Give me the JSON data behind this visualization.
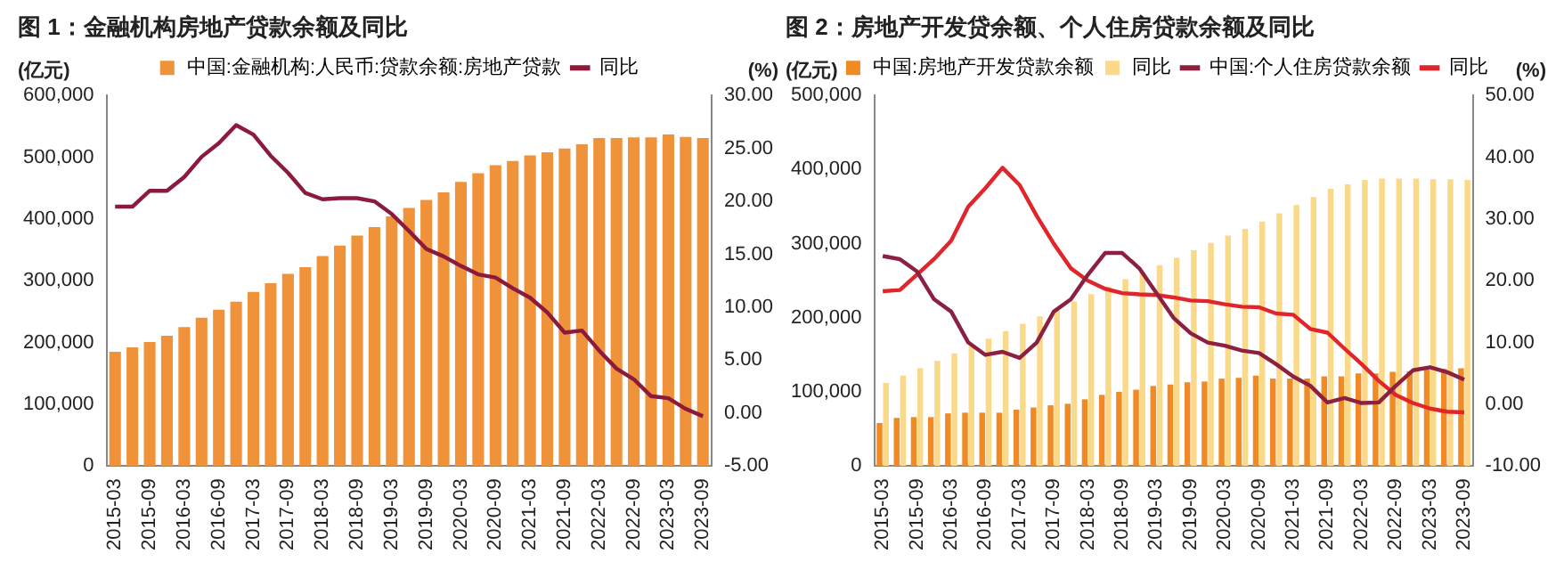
{
  "chart_data": [
    {
      "type": "bar",
      "title": "图 1：金融机构房地产贷款余额及同比",
      "ylabel": "(亿元)",
      "y2label": "(%)",
      "categories": [
        "2015-03",
        null,
        "2015-09",
        null,
        "2016-03",
        null,
        "2016-09",
        null,
        "2017-03",
        null,
        "2017-09",
        null,
        "2018-03",
        null,
        "2018-09",
        null,
        "2019-03",
        null,
        "2019-09",
        null,
        "2020-03",
        null,
        "2020-09",
        null,
        "2021-03",
        null,
        "2021-09",
        null,
        "2022-03",
        null,
        "2022-09",
        null,
        "2023-03",
        null,
        "2023-09"
      ],
      "series": [
        {
          "name": "中国:金融机构:人民币:贷款余额:房地产贷款",
          "color": "#f0923a",
          "values": [
            185000,
            192000,
            201000,
            211000,
            225000,
            240000,
            253000,
            266000,
            282000,
            296000,
            311000,
            322000,
            340000,
            357000,
            373000,
            387000,
            404000,
            418000,
            431000,
            443000,
            460000,
            474000,
            487000,
            494000,
            503000,
            508000,
            514000,
            521000,
            531000,
            531000,
            532000,
            532000,
            537000,
            533000,
            531000
          ]
        },
        {
          "name": "同比",
          "type": "line",
          "axis": "y2",
          "color": "#8b1a3c",
          "values": [
            19.5,
            19.5,
            21,
            21,
            22.3,
            24.2,
            25.5,
            27.2,
            26.3,
            24.3,
            22.7,
            20.8,
            20.2,
            20.3,
            20.3,
            20,
            18.8,
            17.2,
            15.5,
            14.8,
            13.9,
            13.1,
            12.8,
            11.8,
            10.9,
            9.5,
            7.6,
            7.8,
            5.9,
            4.2,
            3.2,
            1.6,
            1.4,
            0.4,
            -0.3
          ]
        }
      ],
      "ylim": [
        0,
        600000
      ],
      "yticks": [
        0,
        {
          "value": 100000,
          "label": "100,000"
        },
        {
          "value": 200000,
          "label": "200,000"
        },
        {
          "value": 300000,
          "label": "300,000"
        },
        {
          "value": 400000,
          "label": "400,000"
        },
        {
          "value": 500000,
          "label": "500,000"
        },
        {
          "value": 600000,
          "label": "600,000"
        }
      ],
      "y2lim": [
        -5,
        30
      ],
      "y2ticks": [
        {
          "value": -5,
          "label": "-5.00"
        },
        {
          "value": 0,
          "label": "0.00"
        },
        {
          "value": 5,
          "label": "5.00"
        },
        {
          "value": 10,
          "label": "10.00"
        },
        {
          "value": 15,
          "label": "15.00"
        },
        {
          "value": 20,
          "label": "20.00"
        },
        {
          "value": 25,
          "label": "25.00"
        },
        {
          "value": 30,
          "label": "30.00"
        }
      ],
      "legend": "top",
      "marker": "none"
    },
    {
      "type": "bar",
      "title": "图 2：房地产开发贷余额、个人住房贷款余额及同比",
      "ylabel": "(亿元)",
      "y2label": "(%)",
      "categories": [
        "2015-03",
        null,
        "2015-09",
        null,
        "2016-03",
        null,
        "2016-09",
        null,
        "2017-03",
        null,
        "2017-09",
        null,
        "2018-03",
        null,
        "2018-09",
        null,
        "2019-03",
        null,
        "2019-09",
        null,
        "2020-03",
        null,
        "2020-09",
        null,
        "2021-03",
        null,
        "2021-09",
        null,
        "2022-03",
        null,
        "2022-09",
        null,
        "2023-03",
        null,
        "2023-09"
      ],
      "series": [
        {
          "name": "中国:房地产开发贷款余额",
          "color": "#f08a24",
          "values": [
            58000,
            65000,
            66000,
            66000,
            71000,
            72000,
            72000,
            72000,
            76000,
            79000,
            82000,
            84000,
            90000,
            96000,
            100000,
            103000,
            108000,
            110000,
            113000,
            114000,
            118000,
            119000,
            122000,
            118000,
            118000,
            118000,
            121000,
            121000,
            125000,
            125000,
            127000,
            128000,
            130000,
            131000,
            132000
          ]
        },
        {
          "name": "同比",
          "color": "#fbd98a",
          "values": [
            112000,
            122000,
            132000,
            142000,
            152000,
            162000,
            172000,
            182000,
            192000,
            202000,
            212000,
            222000,
            232000,
            242000,
            252000,
            262000,
            271000,
            281000,
            291000,
            301000,
            311000,
            320000,
            330000,
            341000,
            352000,
            363000,
            374000,
            380000,
            386000,
            388000,
            388000,
            388000,
            387000,
            387000,
            386000
          ]
        },
        {
          "name": "中国:个人住房贷款余额",
          "type": "line",
          "axis": "y2",
          "color": "#8b2040",
          "values": [
            24,
            23.5,
            21.5,
            17,
            15,
            10,
            8,
            8.5,
            7.5,
            10,
            15,
            17,
            21,
            24.5,
            24.5,
            22,
            18,
            14,
            11.5,
            10,
            9.5,
            8.7,
            8.3,
            6.5,
            4.5,
            3,
            0.3,
            1,
            0.2,
            0.3,
            3,
            5.5,
            6,
            5.2,
            4
          ]
        },
        {
          "name": "同比",
          "type": "line",
          "axis": "y2",
          "color": "#e0262a",
          "values": [
            18.3,
            18.5,
            21,
            23.5,
            26.5,
            32,
            35,
            38.3,
            35.5,
            30.5,
            26,
            22,
            20,
            18.7,
            18,
            17.8,
            17.7,
            17.3,
            16.8,
            16.7,
            16.2,
            15.8,
            15.7,
            14.7,
            14.5,
            12.2,
            11.6,
            9,
            6.5,
            3.8,
            1.5,
            0.2,
            -0.7,
            -1.2,
            -1.3
          ]
        }
      ],
      "ylim": [
        0,
        500000
      ],
      "yticks": [
        0,
        {
          "value": 100000,
          "label": "100,000"
        },
        {
          "value": 200000,
          "label": "200,000"
        },
        {
          "value": 300000,
          "label": "300,000"
        },
        {
          "value": 400000,
          "label": "400,000"
        },
        {
          "value": 500000,
          "label": "500,000"
        }
      ],
      "y2lim": [
        -10,
        50
      ],
      "y2ticks": [
        {
          "value": -10,
          "label": "-10.00"
        },
        {
          "value": 0,
          "label": "0.00"
        },
        {
          "value": 10,
          "label": "10.00"
        },
        {
          "value": 20,
          "label": "20.00"
        },
        {
          "value": 30,
          "label": "30.00"
        },
        {
          "value": 40,
          "label": "40.00"
        },
        {
          "value": 50,
          "label": "50.00"
        }
      ],
      "legend": "top",
      "marker": "none"
    }
  ]
}
